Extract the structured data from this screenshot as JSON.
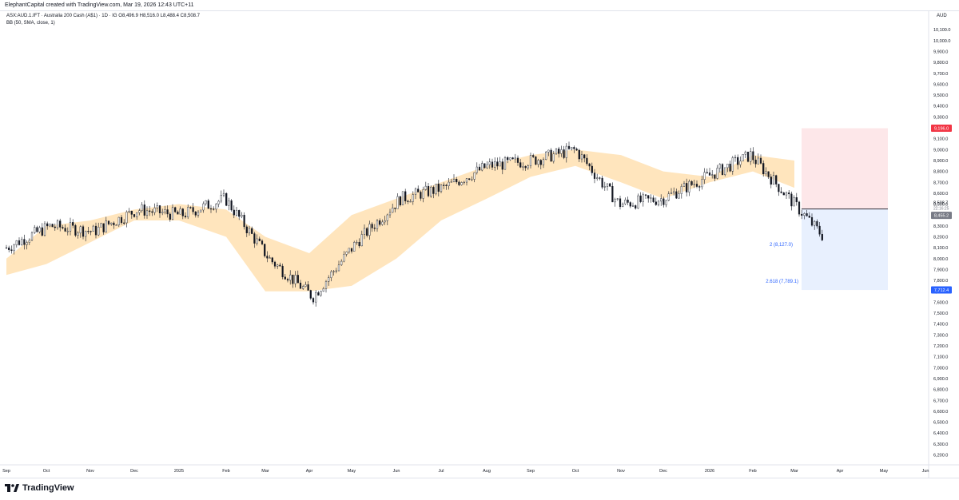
{
  "header": {
    "attribution": "ElephantCapital created with TradingView.com, Mar 19, 2026 12:43 UTC+11",
    "symbol_line": "ASX:AUD.1.IFT · Australia 200 Cash (A$1) · 1D · IG  O8,496.9  H8,516.0  L8,488.4  C8,508.7",
    "indicator_line": "BB (50, SMA, close, 1)"
  },
  "axis": {
    "currency": "AUD",
    "y_ticks": [
      "10,100.0",
      "10,000.0",
      "9,900.0",
      "9,800.0",
      "9,700.0",
      "9,600.0",
      "9,500.0",
      "9,400.0",
      "9,300.0",
      "9,200.0",
      "9,100.0",
      "9,000.0",
      "8,900.0",
      "8,800.0",
      "8,700.0",
      "8,600.0",
      "8,500.0",
      "8,400.0",
      "8,300.0",
      "8,200.0",
      "8,100.0",
      "8,000.0",
      "7,900.0",
      "7,800.0",
      "7,700.0",
      "7,600.0",
      "7,500.0",
      "7,400.0",
      "7,300.0",
      "7,200.0",
      "7,100.0",
      "7,000.0",
      "6,900.0",
      "6,800.0",
      "6,700.0",
      "6,600.0",
      "6,500.0",
      "6,400.0",
      "6,300.0",
      "6,200.0"
    ],
    "x_ticks": [
      "Sep",
      "Oct",
      "Nov",
      "Dec",
      "2025",
      "Feb",
      "Mar",
      "Apr",
      "May",
      "Jun",
      "Jul",
      "Aug",
      "Sep",
      "Oct",
      "Nov",
      "Dec",
      "2026",
      "Feb",
      "Mar",
      "Apr",
      "May",
      "Jun"
    ],
    "price_labels": {
      "stop": "9,196.0",
      "last": "8,508.7",
      "countdown": "22:16:25",
      "entry": "8,455.2",
      "target": "7,712.4"
    },
    "colors": {
      "stop": "#f23645",
      "entry": "#787b86",
      "target": "#2962ff",
      "band": "#ffe0b2",
      "candle": "#131722",
      "stop_zone": "#fde7e9",
      "target_zone": "#e8f0fe"
    }
  },
  "annotations": {
    "fib_2": "2 (8,127.0)",
    "fib_2618": "2.618 (7,789.1)"
  },
  "chart_data": {
    "type": "line",
    "x": [
      "Sep",
      "Oct",
      "Nov",
      "Dec",
      "2025",
      "Feb",
      "Mar",
      "Apr",
      "May",
      "Jun",
      "Jul",
      "Aug",
      "Sep",
      "Oct",
      "Nov",
      "Dec",
      "2026",
      "Feb",
      "Mar"
    ],
    "series": [
      {
        "values": [
          8100,
          8300,
          8250,
          8450,
          8400,
          8550,
          8000,
          7650,
          8150,
          8550,
          8650,
          8850,
          8900,
          9000,
          8500,
          8550,
          8750,
          8950,
          8500
        ]
      }
    ],
    "bollinger": {
      "upper": [
        8000,
        8300,
        8350,
        8450,
        8500,
        8450,
        8200,
        8050,
        8400,
        8550,
        8700,
        8850,
        8950,
        9000,
        8950,
        8800,
        8750,
        8950,
        8900
      ],
      "lower": [
        7850,
        7950,
        8150,
        8350,
        8350,
        8200,
        7700,
        7700,
        7750,
        8000,
        8350,
        8550,
        8750,
        8850,
        8700,
        8550,
        8700,
        8800,
        8650
      ]
    },
    "ylim": [
      6100,
      10200
    ],
    "position": {
      "stop": 9196.0,
      "entry": 8455.2,
      "target": 7712.4
    }
  },
  "footer": {
    "brand": "TradingView"
  }
}
